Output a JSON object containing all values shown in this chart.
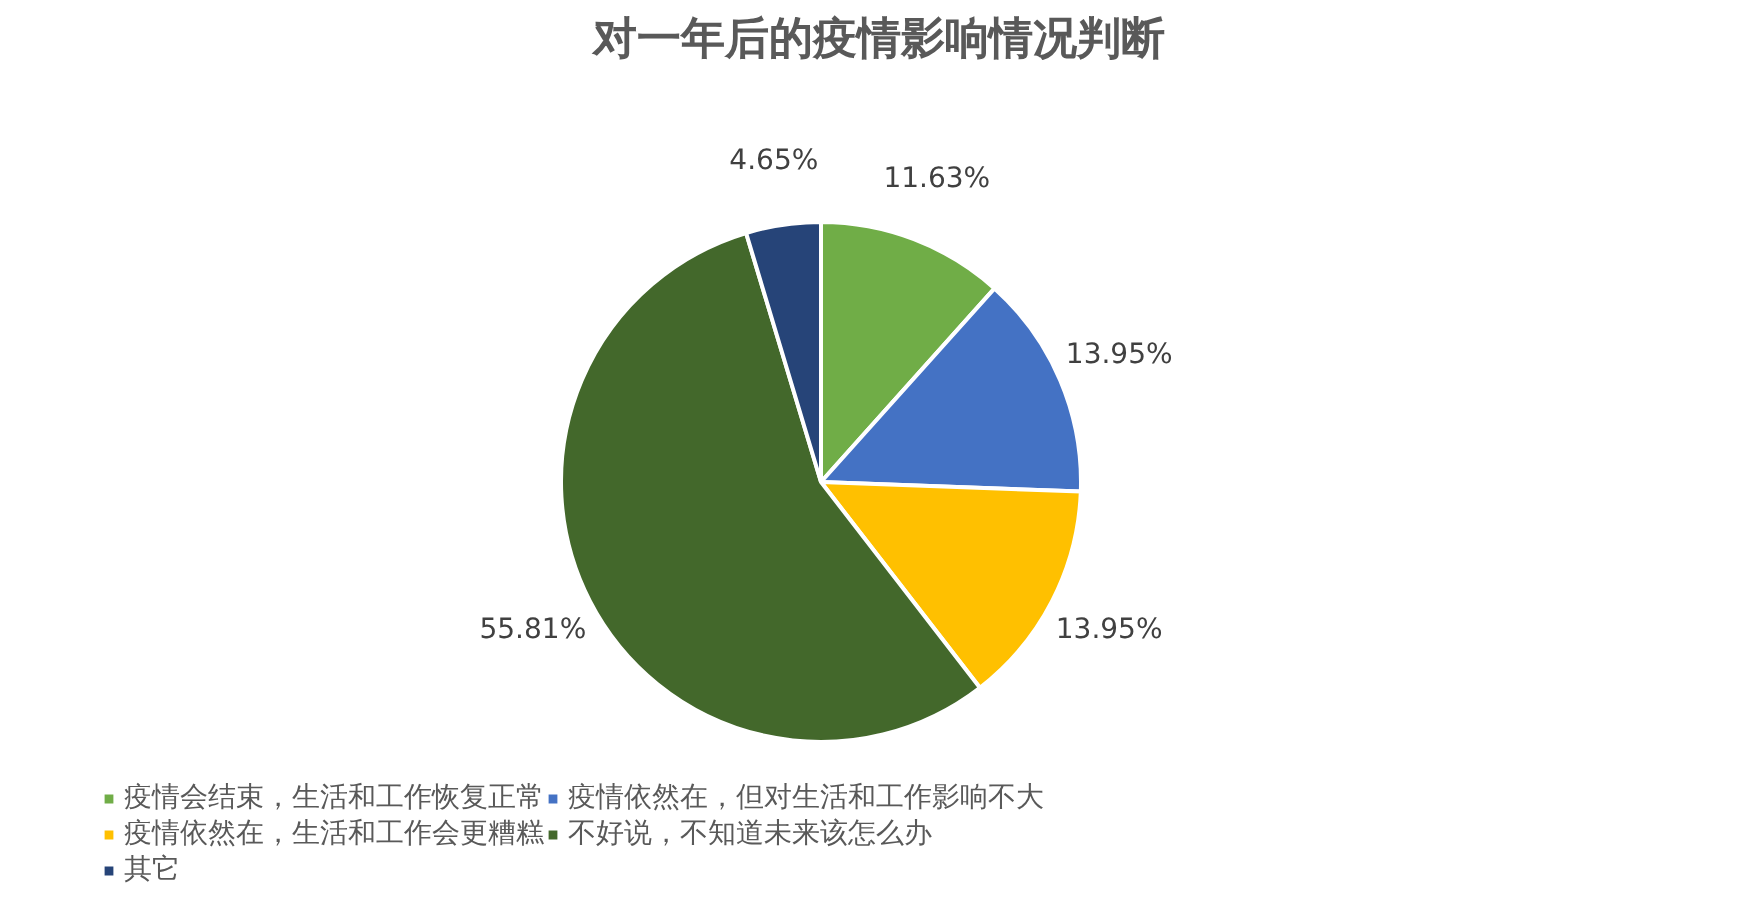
{
  "chart_data": {
    "type": "pie",
    "title": "对一年后的疫情影响情况判断",
    "categories": [
      "疫情会结束，生活和工作恢复正常",
      "疫情依然在，但对生活和工作影响不大",
      "疫情依然在，生活和工作会更糟糕",
      "不好说，不知道未来该怎么办",
      "其它"
    ],
    "values": [
      11.63,
      13.95,
      13.95,
      55.81,
      4.65
    ],
    "colors": [
      "#70ad47",
      "#4472c4",
      "#ffc000",
      "#43682b",
      "#264478"
    ],
    "value_labels": [
      "11.63%",
      "13.95%",
      "13.95%",
      "55.81%",
      "4.65%"
    ],
    "legend": "bottom"
  }
}
